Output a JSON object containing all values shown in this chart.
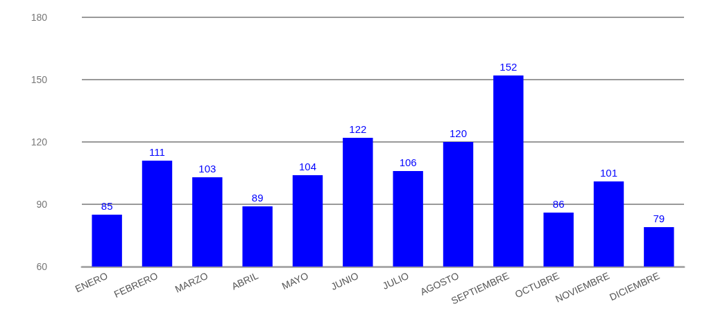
{
  "chart_data": {
    "type": "bar",
    "categories": [
      "ENERO",
      "FEBRERO",
      "MARZO",
      "ABRIL",
      "MAYO",
      "JUNIO",
      "JULIO",
      "AGOSTO",
      "SEPTIEMBRE",
      "OCTUBRE",
      "NOVIEMBRE",
      "DICIEMBRE"
    ],
    "values": [
      85,
      111,
      103,
      89,
      104,
      122,
      106,
      120,
      152,
      86,
      101,
      79
    ],
    "color": "#0000ff",
    "ylim": [
      60,
      180
    ],
    "yticks": [
      60,
      90,
      120,
      150,
      180
    ],
    "grid": "y",
    "data_labels": true
  }
}
